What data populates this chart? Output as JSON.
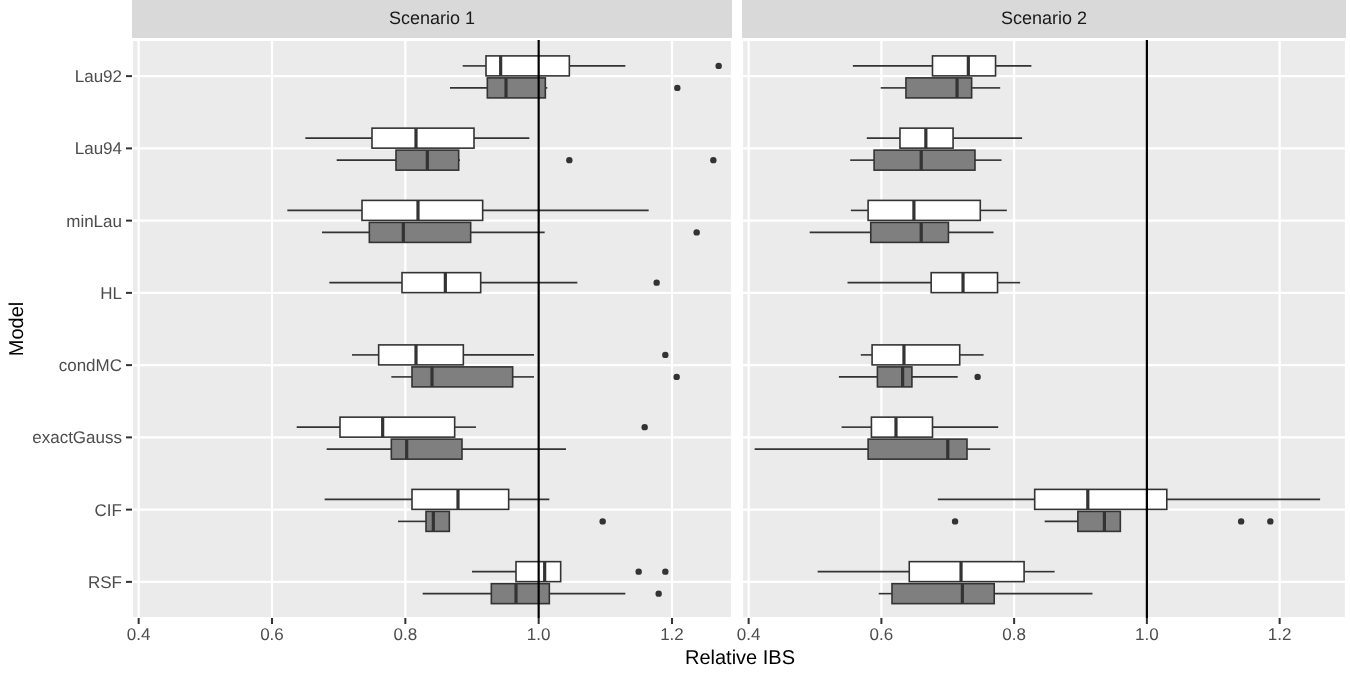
{
  "chart_data": [
    {
      "type": "box",
      "title": "Scenario 1",
      "xlabel": "Relative IBS",
      "ylabel": "Model",
      "orientation": "horizontal",
      "grid": true,
      "categories": [
        "Lau92",
        "Lau94",
        "minLau",
        "HL",
        "condMC",
        "exactGauss",
        "CIF",
        "RSF"
      ],
      "xlim": [
        0.39,
        1.29
      ],
      "xticks": [
        0.4,
        0.6,
        0.8,
        {
          "value": 1.0,
          "label": "1.0"
        },
        1.2
      ],
      "ref_lines": [
        {
          "axis": "x",
          "value": 1.0,
          "color": "#000000"
        }
      ],
      "series": [
        {
          "color": "#ffffff",
          "boxes": [
            {
              "low": 0.886,
              "q1": 0.921,
              "median": 0.943,
              "q3": 1.046,
              "high": 1.13,
              "outliers": [
                1.27
              ]
            },
            {
              "low": 0.65,
              "q1": 0.75,
              "median": 0.816,
              "q3": 0.903,
              "high": 0.986
            },
            {
              "low": 0.623,
              "q1": 0.735,
              "median": 0.819,
              "q3": 0.916,
              "high": 1.165
            },
            {
              "low": 0.686,
              "q1": 0.795,
              "median": 0.86,
              "q3": 0.913,
              "high": 1.058,
              "outliers": [
                1.177
              ]
            },
            {
              "low": 0.72,
              "q1": 0.76,
              "median": 0.816,
              "q3": 0.887,
              "high": 0.993,
              "outliers": [
                1.19
              ]
            },
            {
              "low": 0.637,
              "q1": 0.702,
              "median": 0.766,
              "q3": 0.874,
              "high": 0.906,
              "outliers": [
                1.159
              ]
            },
            {
              "low": 0.679,
              "q1": 0.81,
              "median": 0.879,
              "q3": 0.955,
              "high": 1.016
            },
            {
              "low": 0.9,
              "q1": 0.966,
              "median": 1.009,
              "q3": 1.033,
              "high": 1.033,
              "outliers": [
                1.15,
                1.19
              ]
            }
          ]
        },
        {
          "color": "#7f7f7f",
          "boxes": [
            {
              "low": 0.867,
              "q1": 0.923,
              "median": 0.951,
              "q3": 1.01,
              "high": 1.013,
              "outliers": [
                1.208
              ]
            },
            {
              "low": 0.697,
              "q1": 0.786,
              "median": 0.833,
              "q3": 0.88,
              "high": 0.882,
              "outliers": [
                1.046,
                1.262
              ]
            },
            {
              "low": 0.675,
              "q1": 0.746,
              "median": 0.797,
              "q3": 0.898,
              "high": 1.009,
              "outliers": [
                1.237
              ]
            },
            null,
            {
              "low": 0.779,
              "q1": 0.81,
              "median": 0.84,
              "q3": 0.961,
              "high": 0.993,
              "outliers": [
                1.207
              ]
            },
            {
              "low": 0.682,
              "q1": 0.779,
              "median": 0.802,
              "q3": 0.885,
              "high": 1.041
            },
            {
              "low": 0.789,
              "q1": 0.831,
              "median": 0.842,
              "q3": 0.866,
              "high": 0.866,
              "outliers": [
                1.096
              ]
            },
            {
              "low": 0.826,
              "q1": 0.929,
              "median": 0.966,
              "q3": 1.016,
              "high": 1.13,
              "outliers": [
                1.18
              ]
            }
          ]
        }
      ]
    },
    {
      "type": "box",
      "title": "Scenario 2",
      "orientation": "horizontal",
      "grid": true,
      "tick_labels": "x",
      "categories": [
        null,
        null,
        null,
        null,
        null,
        null,
        null,
        null
      ],
      "xlim": [
        0.39,
        1.3
      ],
      "xticks": [
        0.4,
        0.6,
        0.8,
        {
          "value": 1.0,
          "label": "1.0"
        },
        1.2
      ],
      "ref_lines": [
        {
          "axis": "x",
          "value": 1.0,
          "color": "#000000"
        }
      ],
      "series": [
        {
          "color": "#ffffff",
          "boxes": [
            {
              "low": 0.557,
              "q1": 0.677,
              "median": 0.731,
              "q3": 0.772,
              "high": 0.826
            },
            {
              "low": 0.578,
              "q1": 0.628,
              "median": 0.667,
              "q3": 0.708,
              "high": 0.812
            },
            {
              "low": 0.554,
              "q1": 0.58,
              "median": 0.649,
              "q3": 0.749,
              "high": 0.789
            },
            {
              "low": 0.549,
              "q1": 0.675,
              "median": 0.723,
              "q3": 0.775,
              "high": 0.809
            },
            {
              "low": 0.569,
              "q1": 0.586,
              "median": 0.634,
              "q3": 0.718,
              "high": 0.754
            },
            {
              "low": 0.54,
              "q1": 0.585,
              "median": 0.622,
              "q3": 0.677,
              "high": 0.776
            },
            {
              "low": 0.685,
              "q1": 0.831,
              "median": 0.911,
              "q3": 1.03,
              "high": 1.261
            },
            {
              "low": 0.504,
              "q1": 0.642,
              "median": 0.72,
              "q3": 0.815,
              "high": 0.861
            }
          ]
        },
        {
          "color": "#7f7f7f",
          "boxes": [
            {
              "low": 0.599,
              "q1": 0.637,
              "median": 0.714,
              "q3": 0.736,
              "high": 0.779
            },
            {
              "low": 0.553,
              "q1": 0.589,
              "median": 0.66,
              "q3": 0.741,
              "high": 0.781
            },
            {
              "low": 0.492,
              "q1": 0.584,
              "median": 0.66,
              "q3": 0.701,
              "high": 0.769
            },
            null,
            {
              "low": 0.536,
              "q1": 0.594,
              "median": 0.632,
              "q3": 0.646,
              "high": 0.715,
              "outliers": [
                0.745
              ]
            },
            {
              "low": 0.409,
              "q1": 0.58,
              "median": 0.7,
              "q3": 0.729,
              "high": 0.764
            },
            {
              "low": 0.846,
              "q1": 0.896,
              "median": 0.936,
              "q3": 0.96,
              "high": 0.96,
              "outliers": [
                0.711,
                1.142,
                1.186
              ]
            },
            {
              "low": 0.596,
              "q1": 0.616,
              "median": 0.722,
              "q3": 0.77,
              "high": 0.918
            }
          ]
        }
      ]
    }
  ]
}
